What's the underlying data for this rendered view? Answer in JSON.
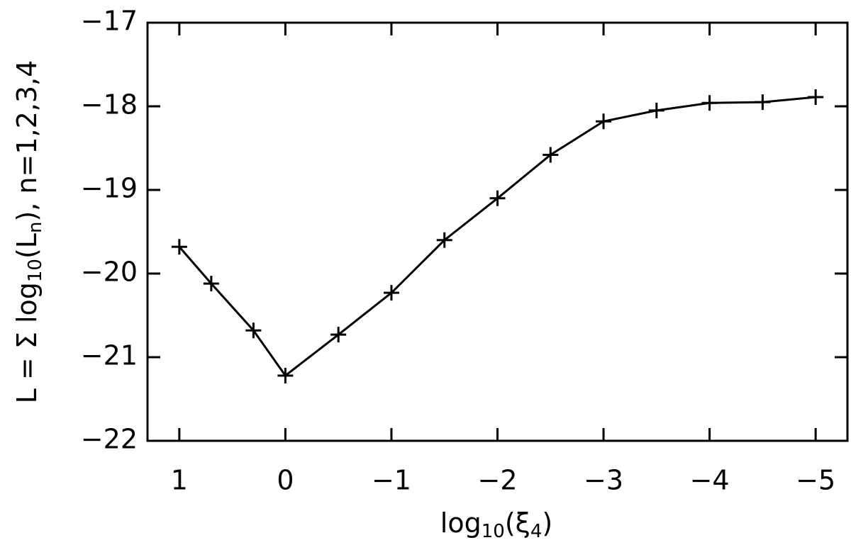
{
  "chart_data": {
    "type": "line",
    "xlabel": [
      "log",
      "10",
      "(ξ",
      "4",
      ")"
    ],
    "ylabel": [
      "L = Σ log",
      "10",
      "(L",
      "n",
      "),  n=1,2,3,4"
    ],
    "x": [
      1,
      0.699,
      0.301,
      0,
      -0.5,
      -1,
      -1.5,
      -2,
      -2.5,
      -3,
      -3.5,
      -4,
      -4.5,
      -5
    ],
    "series": [
      {
        "color": "#000000",
        "marker": "+",
        "values": [
          -19.68,
          -20.12,
          -20.68,
          -21.22,
          -20.73,
          -20.23,
          -19.6,
          -19.1,
          -18.58,
          -18.18,
          -18.05,
          -17.96,
          -17.95,
          -17.89
        ]
      }
    ],
    "xlim": [
      1.3,
      -5.3
    ],
    "xticks": [
      1,
      0,
      {
        "value": -1,
        "label": "−1"
      },
      {
        "value": -2,
        "label": "−2"
      },
      {
        "value": -3,
        "label": "−3"
      },
      {
        "value": -4,
        "label": "−4"
      },
      {
        "value": -5,
        "label": "−5"
      }
    ],
    "ylim": [
      -22,
      -17
    ],
    "yticks": [
      {
        "value": -22,
        "label": "−22"
      },
      {
        "value": -21,
        "label": "−21"
      },
      {
        "value": -20,
        "label": "−20"
      },
      {
        "value": -19,
        "label": "−19"
      },
      {
        "value": -18,
        "label": "−18"
      },
      {
        "value": -17,
        "label": "−17"
      }
    ],
    "grid": false
  }
}
